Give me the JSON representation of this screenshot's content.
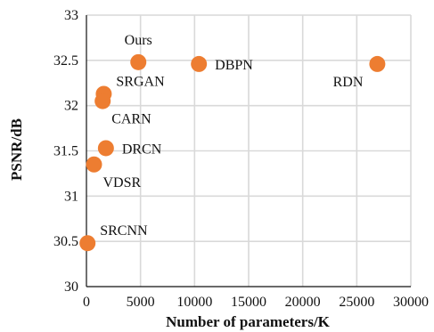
{
  "chart_data": {
    "type": "scatter",
    "xlabel": "Number of parameters/K",
    "ylabel": "PSNR/dB",
    "xlim": [
      0,
      30000
    ],
    "ylim": [
      30,
      33
    ],
    "xticks": [
      0,
      5000,
      10000,
      15000,
      20000,
      25000,
      30000
    ],
    "xtick_labels": [
      "0",
      "5000",
      "10000",
      "15000",
      "20000",
      "25000",
      "30000"
    ],
    "yticks": [
      30,
      30.5,
      31,
      31.5,
      32,
      32.5,
      33
    ],
    "ytick_labels": [
      "30",
      "30.5",
      "31",
      "31.5",
      "32",
      "32.5",
      "33"
    ],
    "grid": true,
    "marker_color": "#ED7D31",
    "points": [
      {
        "label": "Ours",
        "x": 4800,
        "y": 32.48,
        "label_pos": "above"
      },
      {
        "label": "DBPN",
        "x": 10400,
        "y": 32.46,
        "label_pos": "right"
      },
      {
        "label": "RDN",
        "x": 26900,
        "y": 32.46,
        "label_pos": "below-left"
      },
      {
        "label": "SRGAN",
        "x": 1600,
        "y": 32.13,
        "label_pos": "above-right"
      },
      {
        "label": "CARN",
        "x": 1500,
        "y": 32.05,
        "label_pos": "below-right"
      },
      {
        "label": "DRCN",
        "x": 1800,
        "y": 31.53,
        "label_pos": "right"
      },
      {
        "label": "VDSR",
        "x": 700,
        "y": 31.35,
        "label_pos": "below-right"
      },
      {
        "label": "SRCNN",
        "x": 100,
        "y": 30.48,
        "label_pos": "above-right"
      }
    ]
  }
}
